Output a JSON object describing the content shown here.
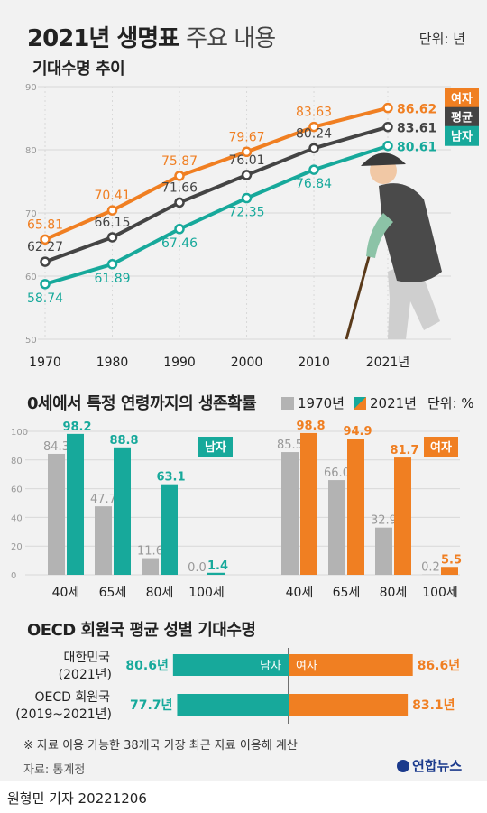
{
  "header": {
    "title_main": "2021년 생명표",
    "title_sub": "주요 내용",
    "unit": "단위: 년"
  },
  "colors": {
    "female": "#f07f22",
    "average": "#444444",
    "male": "#17a99b",
    "y1970": "#b3b3b3"
  },
  "chart_data": [
    {
      "type": "line",
      "title": "기대수명 추이",
      "x": [
        1970,
        1980,
        1990,
        2000,
        2010,
        2021
      ],
      "x_tick_labels": [
        "1970",
        "1980",
        "1990",
        "2000",
        "2010",
        "2021년"
      ],
      "ylim": [
        50,
        90
      ],
      "y_ticks": [
        50,
        60,
        70,
        80,
        90
      ],
      "series": [
        {
          "name": "여자",
          "values": [
            65.81,
            70.41,
            75.87,
            79.67,
            83.63,
            86.62
          ],
          "labels": [
            "65.81",
            "70.41",
            "75.87",
            "79.67",
            "83.63",
            "86.62"
          ]
        },
        {
          "name": "평균",
          "values": [
            62.27,
            66.15,
            71.66,
            76.01,
            80.24,
            83.61
          ],
          "labels": [
            "62.27",
            "66.15",
            "71.66",
            "76.01",
            "80.24",
            "83.61"
          ]
        },
        {
          "name": "남자",
          "values": [
            58.74,
            61.89,
            67.46,
            72.35,
            76.84,
            80.61
          ],
          "labels": [
            "58.74",
            "61.89",
            "67.46",
            "72.35",
            "76.84",
            "80.61"
          ]
        }
      ]
    },
    {
      "type": "bar",
      "title": "0세에서 특정 연령까지의 생존확률",
      "unit": "단위: %",
      "legend": [
        "1970년",
        "2021년"
      ],
      "categories": [
        "40세",
        "65세",
        "80세",
        "100세"
      ],
      "ylim": [
        0,
        100
      ],
      "y_ticks": [
        0,
        20,
        40,
        60,
        80,
        100
      ],
      "groups": [
        {
          "name": "남자",
          "y1970": [
            84.3,
            47.7,
            11.6,
            0.0
          ],
          "y2021": [
            98.2,
            88.8,
            63.1,
            1.4
          ],
          "labels1970": [
            "84.3",
            "47.7",
            "11.6",
            "0.0"
          ],
          "labels2021": [
            "98.2",
            "88.8",
            "63.1",
            "1.4"
          ]
        },
        {
          "name": "여자",
          "y1970": [
            85.5,
            66.0,
            32.9,
            0.2
          ],
          "y2021": [
            98.8,
            94.9,
            81.7,
            5.5
          ],
          "labels1970": [
            "85.5",
            "66.0",
            "32.9",
            "0.2"
          ],
          "labels2021": [
            "98.8",
            "94.9",
            "81.7",
            "5.5"
          ]
        }
      ]
    },
    {
      "type": "bar",
      "title": "OECD 회원국 평균 성별 기대수명",
      "categories": [
        {
          "name": "대한민국",
          "period": "(2021년)"
        },
        {
          "name": "OECD 회원국",
          "period": "(2019~2021년)"
        }
      ],
      "male_label": "남자",
      "female_label": "여자",
      "male": [
        80.6,
        77.7
      ],
      "female": [
        86.6,
        83.1
      ],
      "male_labels": [
        "80.6년",
        "77.7년"
      ],
      "female_labels": [
        "86.6년",
        "83.1년"
      ]
    }
  ],
  "footer": {
    "note": "※ 자료 이용 가능한 38개국 가장 최근 자료 이용해 계산",
    "source": "자료: 통계청",
    "brand": "연합뉴스",
    "byline": "원형민 기자  20221206"
  }
}
